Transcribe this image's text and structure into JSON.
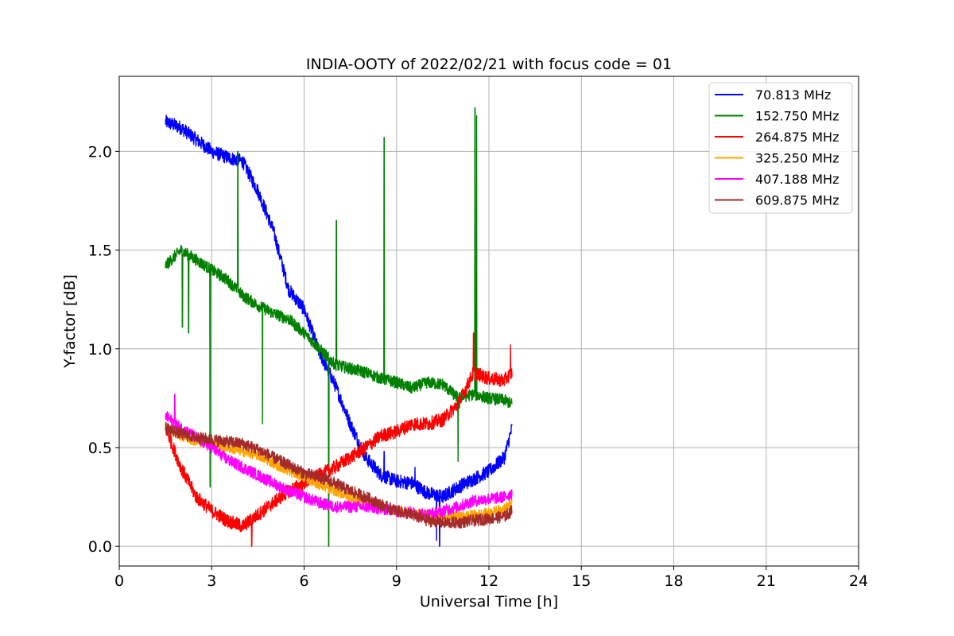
{
  "chart_data": {
    "type": "line",
    "title": "INDIA-OOTY of 2022/02/21 with focus code = 01",
    "xlabel": "Universal Time [h]",
    "ylabel": "Y-factor [dB]",
    "xlim": [
      0,
      24
    ],
    "ylim": [
      -0.1,
      2.38
    ],
    "xticks": [
      0,
      3,
      6,
      9,
      12,
      15,
      18,
      21,
      24
    ],
    "yticks": [
      0.0,
      0.5,
      1.0,
      1.5,
      2.0
    ],
    "xtick_labels": [
      "0",
      "3",
      "6",
      "9",
      "12",
      "15",
      "18",
      "21",
      "24"
    ],
    "ytick_labels": [
      "0.0",
      "0.5",
      "1.0",
      "1.5",
      "2.0"
    ],
    "grid": true,
    "legend_position": "top-right",
    "series": [
      {
        "name": " 70.813 MHz",
        "color": "#0000ff",
        "noise": 0.035,
        "x": [
          1.5,
          2.0,
          2.5,
          3.0,
          3.5,
          4.0,
          4.5,
          5.0,
          5.5,
          6.0,
          6.5,
          7.0,
          7.5,
          8.0,
          8.5,
          9.0,
          9.5,
          10.0,
          10.5,
          11.0,
          11.5,
          12.0,
          12.5,
          12.75
        ],
        "y": [
          2.15,
          2.12,
          2.06,
          2.0,
          1.97,
          1.95,
          1.8,
          1.6,
          1.3,
          1.2,
          0.98,
          0.82,
          0.62,
          0.45,
          0.36,
          0.33,
          0.32,
          0.27,
          0.25,
          0.3,
          0.34,
          0.38,
          0.45,
          0.6
        ],
        "spikes": [
          {
            "x": 10.3,
            "y": 0.03
          },
          {
            "x": 10.4,
            "y": 0.0
          },
          {
            "x": 8.6,
            "y": 0.48
          },
          {
            "x": 9.6,
            "y": 0.4
          }
        ]
      },
      {
        "name": "152.750 MHz",
        "color": "#008000",
        "noise": 0.03,
        "x": [
          1.5,
          2.0,
          2.5,
          3.0,
          3.5,
          4.0,
          4.5,
          5.0,
          5.5,
          6.0,
          6.5,
          7.0,
          7.5,
          8.0,
          8.5,
          9.0,
          9.5,
          10.0,
          10.5,
          11.0,
          11.5,
          12.0,
          12.5,
          12.75
        ],
        "y": [
          1.42,
          1.5,
          1.45,
          1.4,
          1.35,
          1.27,
          1.22,
          1.18,
          1.15,
          1.08,
          1.0,
          0.92,
          0.9,
          0.88,
          0.85,
          0.83,
          0.8,
          0.83,
          0.82,
          0.75,
          0.77,
          0.75,
          0.74,
          0.72
        ],
        "spikes": [
          {
            "x": 2.05,
            "y": 1.11
          },
          {
            "x": 2.25,
            "y": 1.08
          },
          {
            "x": 2.95,
            "y": 0.3
          },
          {
            "x": 3.85,
            "y": 2.0
          },
          {
            "x": 4.65,
            "y": 0.62
          },
          {
            "x": 6.8,
            "y": 0.0
          },
          {
            "x": 7.05,
            "y": 1.65
          },
          {
            "x": 8.6,
            "y": 2.07
          },
          {
            "x": 11.0,
            "y": 0.43
          },
          {
            "x": 11.55,
            "y": 2.22
          },
          {
            "x": 11.6,
            "y": 2.18
          }
        ]
      },
      {
        "name": "264.875 MHz",
        "color": "#ff0000",
        "noise": 0.035,
        "x": [
          1.5,
          2.0,
          2.5,
          3.0,
          3.5,
          4.0,
          4.5,
          5.0,
          5.5,
          6.0,
          6.5,
          7.0,
          7.5,
          8.0,
          8.5,
          9.0,
          9.5,
          10.0,
          10.5,
          11.0,
          11.5,
          12.0,
          12.5,
          12.75
        ],
        "y": [
          0.6,
          0.4,
          0.25,
          0.18,
          0.13,
          0.1,
          0.16,
          0.22,
          0.28,
          0.32,
          0.36,
          0.4,
          0.45,
          0.5,
          0.56,
          0.58,
          0.62,
          0.62,
          0.64,
          0.72,
          0.88,
          0.85,
          0.84,
          0.88
        ],
        "spikes": [
          {
            "x": 4.3,
            "y": 0.0
          },
          {
            "x": 11.5,
            "y": 1.08
          },
          {
            "x": 12.7,
            "y": 1.02
          }
        ]
      },
      {
        "name": "325.250 MHz",
        "color": "#ffa500",
        "noise": 0.025,
        "x": [
          1.5,
          2.0,
          2.5,
          3.0,
          3.5,
          4.0,
          4.5,
          5.0,
          5.5,
          6.0,
          6.5,
          7.0,
          7.5,
          8.0,
          8.5,
          9.0,
          9.5,
          10.0,
          10.5,
          11.0,
          11.5,
          12.0,
          12.5,
          12.75
        ],
        "y": [
          0.6,
          0.56,
          0.53,
          0.52,
          0.5,
          0.48,
          0.46,
          0.42,
          0.38,
          0.35,
          0.31,
          0.28,
          0.25,
          0.23,
          0.2,
          0.18,
          0.17,
          0.16,
          0.15,
          0.15,
          0.16,
          0.17,
          0.19,
          0.22
        ],
        "spikes": []
      },
      {
        "name": "407.188 MHz",
        "color": "#ff00ff",
        "noise": 0.03,
        "x": [
          1.5,
          2.0,
          2.5,
          3.0,
          3.5,
          4.0,
          4.5,
          5.0,
          5.5,
          6.0,
          6.5,
          7.0,
          7.5,
          8.0,
          8.5,
          9.0,
          9.5,
          10.0,
          10.5,
          11.0,
          11.5,
          12.0,
          12.5,
          12.75
        ],
        "y": [
          0.66,
          0.6,
          0.55,
          0.5,
          0.44,
          0.4,
          0.36,
          0.32,
          0.28,
          0.25,
          0.22,
          0.2,
          0.2,
          0.2,
          0.19,
          0.18,
          0.17,
          0.16,
          0.18,
          0.2,
          0.23,
          0.24,
          0.25,
          0.27
        ],
        "spikes": [
          {
            "x": 1.8,
            "y": 0.77
          }
        ]
      },
      {
        "name": "609.875 MHz",
        "color": "#a52a2a",
        "noise": 0.03,
        "x": [
          1.5,
          2.0,
          2.5,
          3.0,
          3.5,
          4.0,
          4.5,
          5.0,
          5.5,
          6.0,
          6.5,
          7.0,
          7.5,
          8.0,
          8.5,
          9.0,
          9.5,
          10.0,
          10.5,
          11.0,
          11.5,
          12.0,
          12.5,
          12.75
        ],
        "y": [
          0.6,
          0.57,
          0.55,
          0.54,
          0.53,
          0.52,
          0.49,
          0.45,
          0.41,
          0.37,
          0.35,
          0.32,
          0.28,
          0.25,
          0.21,
          0.18,
          0.16,
          0.13,
          0.12,
          0.12,
          0.13,
          0.14,
          0.15,
          0.18
        ],
        "spikes": []
      }
    ]
  }
}
